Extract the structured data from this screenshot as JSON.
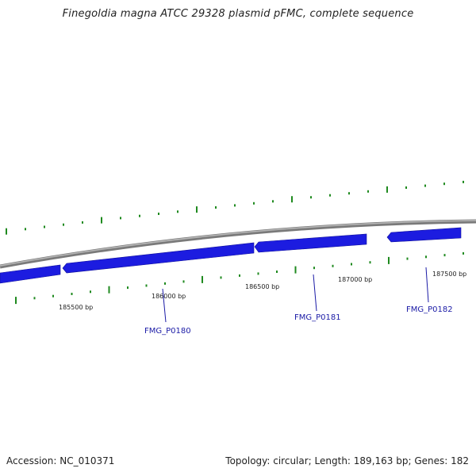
{
  "title": "Finegoldia magna ATCC 29328 plasmid pFMC, complete sequence",
  "footer": {
    "accession": "Accession: NC_010371",
    "summary": "Topology: circular; Length: 189,163 bp; Genes: 182"
  },
  "position_labels": [
    "185500 bp",
    "186000 bp",
    "186500 bp",
    "187000 bp",
    "187500 bp"
  ],
  "genes": [
    "FMG_P0180",
    "FMG_P0181",
    "FMG_P0182"
  ],
  "colors": {
    "backbone": "#8a8a8a",
    "gene": "#1c1ce0",
    "gene_label": "#1a1aa6",
    "ticks": "#1f8a1f"
  }
}
